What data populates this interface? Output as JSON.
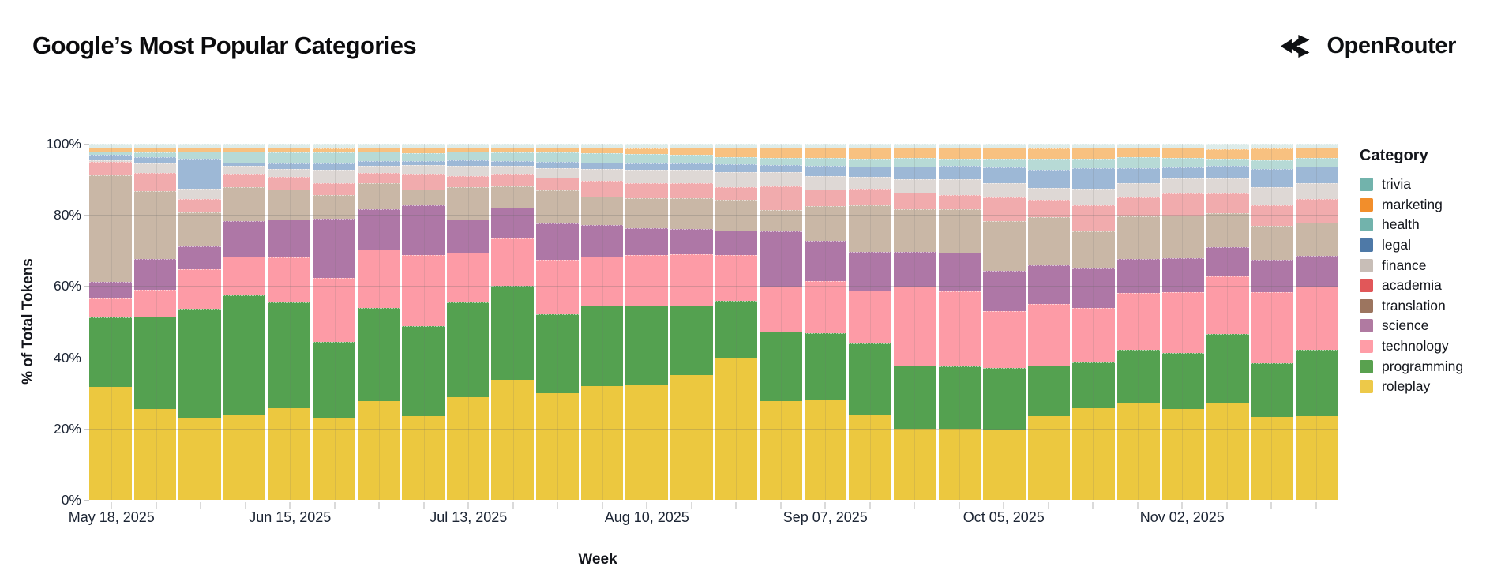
{
  "header": {
    "title": "Google’s Most Popular Categories",
    "brand": "OpenRouter"
  },
  "legend": {
    "title": "Category",
    "items": [
      "trivia",
      "marketing",
      "health",
      "legal",
      "finance",
      "academia",
      "translation",
      "science",
      "technology",
      "programming",
      "roleplay"
    ],
    "patterned_items": [
      "legal",
      "finance"
    ]
  },
  "chart_data": {
    "type": "bar",
    "variant": "100-percent-stacked-weekly-columns",
    "title": "Google’s Most Popular Categories",
    "xlabel": "Week",
    "ylabel": "% of Total Tokens",
    "ylim": [
      0,
      100
    ],
    "y_ticks": [
      "0%",
      "20%",
      "40%",
      "60%",
      "80%",
      "100%"
    ],
    "x_tick_labels_visible": [
      "May 18, 2025",
      "Jun 15, 2025",
      "Jul 13, 2025",
      "Aug 10, 2025",
      "Sep 07, 2025",
      "Oct 05, 2025",
      "Nov 02, 2025"
    ],
    "x_label_week_indices": [
      0,
      4,
      8,
      12,
      16,
      20,
      24
    ],
    "grid": "faint horizontal 20/40/60/80 and per-week vertical lines over bars",
    "legend_position": "right",
    "stack_order_bottom_to_top": [
      "roleplay",
      "programming",
      "technology",
      "science",
      "translation",
      "academia",
      "finance",
      "legal",
      "health",
      "marketing",
      "trivia"
    ],
    "bar_colors": {
      "roleplay": "#ecc83f",
      "programming": "#54a150",
      "technology": "#fd9ba6",
      "science": "#ae77a6",
      "translation": "#c9b7a6",
      "academia": "#f1abad",
      "finance": "#ded8d5",
      "legal": "#9db8d6",
      "health": "#b7dad6",
      "marketing": "#f8c180",
      "trivia": "#ddecea"
    },
    "bar_patterned": [
      "trivia",
      "legal",
      "finance"
    ],
    "legend_colors": {
      "trivia": "#72b3ac",
      "marketing": "#f28e2b",
      "health": "#72b3ac",
      "legal": "#4e79a7",
      "finance": "#c8beb7",
      "academia": "#e15759",
      "translation": "#9c755f",
      "science": "#b07aa1",
      "technology": "#ff9da7",
      "programming": "#59a14f",
      "roleplay": "#edc949"
    },
    "weeks": [
      {
        "week": "May 18, 2025",
        "values": {
          "roleplay": 31.7,
          "programming": 19.6,
          "technology": 5.3,
          "science": 4.7,
          "translation": 29.9,
          "academia": 3.9,
          "finance": 0.3,
          "legal": 1.5,
          "health": 0.9,
          "marketing": 1.3,
          "trivia": 1.0
        }
      },
      {
        "week": "May 25, 2025",
        "values": {
          "roleplay": 25.6,
          "programming": 26.0,
          "technology": 7.5,
          "science": 8.7,
          "translation": 18.9,
          "academia": 5.2,
          "finance": 2.7,
          "legal": 1.8,
          "health": 1.3,
          "marketing": 1.3,
          "trivia": 1.1
        }
      },
      {
        "week": "Jun 01, 2025",
        "values": {
          "roleplay": 22.9,
          "programming": 30.8,
          "technology": 11.1,
          "science": 6.3,
          "translation": 9.6,
          "academia": 3.9,
          "finance": 2.7,
          "legal": 8.6,
          "health": 1.8,
          "marketing": 1.2,
          "trivia": 1.1
        }
      },
      {
        "week": "Jun 08, 2025",
        "values": {
          "roleplay": 24.0,
          "programming": 33.4,
          "technology": 10.9,
          "science": 10.0,
          "translation": 9.5,
          "academia": 3.7,
          "finance": 2.2,
          "legal": 1.0,
          "health": 3.0,
          "marketing": 1.3,
          "trivia": 1.0
        }
      },
      {
        "week": "Jun 15, 2025",
        "values": {
          "roleplay": 25.8,
          "programming": 29.7,
          "technology": 12.6,
          "science": 10.6,
          "translation": 8.4,
          "academia": 3.5,
          "finance": 2.4,
          "legal": 1.5,
          "health": 3.1,
          "marketing": 1.3,
          "trivia": 1.1
        }
      },
      {
        "week": "Jun 22, 2025",
        "values": {
          "roleplay": 22.9,
          "programming": 21.4,
          "technology": 18.1,
          "science": 16.6,
          "translation": 6.5,
          "academia": 3.5,
          "finance": 3.7,
          "legal": 1.7,
          "health": 3.1,
          "marketing": 1.3,
          "trivia": 1.2
        }
      },
      {
        "week": "Jun 29, 2025",
        "values": {
          "roleplay": 27.7,
          "programming": 26.2,
          "technology": 16.3,
          "science": 11.5,
          "translation": 7.2,
          "academia": 2.8,
          "finance": 2.2,
          "legal": 1.3,
          "health": 2.5,
          "marketing": 1.3,
          "trivia": 1.0
        }
      },
      {
        "week": "Jul 06, 2025",
        "values": {
          "roleplay": 23.6,
          "programming": 25.1,
          "technology": 20.0,
          "science": 14.1,
          "translation": 4.4,
          "academia": 4.3,
          "finance": 2.5,
          "legal": 1.2,
          "health": 2.2,
          "marketing": 1.6,
          "trivia": 1.0
        }
      },
      {
        "week": "Jul 13, 2025",
        "values": {
          "roleplay": 28.8,
          "programming": 26.6,
          "technology": 13.9,
          "science": 9.4,
          "translation": 9.2,
          "academia": 3.1,
          "finance": 2.7,
          "legal": 1.6,
          "health": 2.4,
          "marketing": 1.3,
          "trivia": 1.0
        }
      },
      {
        "week": "Jul 20, 2025",
        "values": {
          "roleplay": 33.6,
          "programming": 26.6,
          "technology": 13.3,
          "science": 8.5,
          "translation": 6.1,
          "academia": 3.4,
          "finance": 2.4,
          "legal": 1.3,
          "health": 2.4,
          "marketing": 1.3,
          "trivia": 1.1
        }
      },
      {
        "week": "Jul 27, 2025",
        "values": {
          "roleplay": 30.0,
          "programming": 22.0,
          "technology": 15.3,
          "science": 10.4,
          "translation": 9.3,
          "academia": 3.5,
          "finance": 2.7,
          "legal": 1.7,
          "health": 2.6,
          "marketing": 1.5,
          "trivia": 1.0
        }
      },
      {
        "week": "Aug 03, 2025",
        "values": {
          "roleplay": 31.9,
          "programming": 22.6,
          "technology": 13.7,
          "science": 8.9,
          "translation": 8.1,
          "academia": 4.5,
          "finance": 3.2,
          "legal": 1.8,
          "health": 2.7,
          "marketing": 1.6,
          "trivia": 1.0
        }
      },
      {
        "week": "Aug 10, 2025",
        "values": {
          "roleplay": 32.1,
          "programming": 22.4,
          "technology": 14.2,
          "science": 7.5,
          "translation": 8.6,
          "academia": 4.2,
          "finance": 3.7,
          "legal": 1.8,
          "health": 2.6,
          "marketing": 1.7,
          "trivia": 1.2
        }
      },
      {
        "week": "Aug 17, 2025",
        "values": {
          "roleplay": 35.1,
          "programming": 19.5,
          "technology": 14.3,
          "science": 7.1,
          "translation": 8.7,
          "academia": 4.2,
          "finance": 3.7,
          "legal": 1.9,
          "health": 2.5,
          "marketing": 1.9,
          "trivia": 1.1
        }
      },
      {
        "week": "Aug 24, 2025",
        "values": {
          "roleplay": 39.9,
          "programming": 15.9,
          "technology": 12.9,
          "science": 7.0,
          "translation": 8.5,
          "academia": 3.6,
          "finance": 4.2,
          "legal": 2.2,
          "health": 2.0,
          "marketing": 2.8,
          "trivia": 1.0
        }
      },
      {
        "week": "Aug 31, 2025",
        "values": {
          "roleplay": 27.7,
          "programming": 19.5,
          "technology": 12.7,
          "science": 15.6,
          "translation": 5.9,
          "academia": 6.7,
          "finance": 3.9,
          "legal": 2.0,
          "health": 2.1,
          "marketing": 2.8,
          "trivia": 1.1
        }
      },
      {
        "week": "Sep 07, 2025",
        "values": {
          "roleplay": 27.9,
          "programming": 18.8,
          "technology": 14.8,
          "science": 11.3,
          "translation": 9.8,
          "academia": 4.6,
          "finance": 3.8,
          "legal": 2.8,
          "health": 2.2,
          "marketing": 3.0,
          "trivia": 1.0
        }
      },
      {
        "week": "Sep 14, 2025",
        "values": {
          "roleplay": 23.7,
          "programming": 20.2,
          "technology": 14.8,
          "science": 10.9,
          "translation": 13.2,
          "academia": 4.6,
          "finance": 3.4,
          "legal": 2.7,
          "health": 2.4,
          "marketing": 3.1,
          "trivia": 1.0
        }
      },
      {
        "week": "Sep 21, 2025",
        "values": {
          "roleplay": 19.9,
          "programming": 17.8,
          "technology": 22.2,
          "science": 9.8,
          "translation": 11.9,
          "academia": 4.6,
          "finance": 3.9,
          "legal": 3.5,
          "health": 2.4,
          "marketing": 3.0,
          "trivia": 1.0
        }
      },
      {
        "week": "Sep 28, 2025",
        "values": {
          "roleplay": 20.0,
          "programming": 17.5,
          "technology": 21.0,
          "science": 10.8,
          "translation": 12.2,
          "academia": 4.1,
          "finance": 4.4,
          "legal": 3.7,
          "health": 2.2,
          "marketing": 3.1,
          "trivia": 1.0
        }
      },
      {
        "week": "Oct 05, 2025",
        "values": {
          "roleplay": 19.5,
          "programming": 17.5,
          "technology": 16.1,
          "science": 11.2,
          "translation": 13.9,
          "academia": 6.8,
          "finance": 3.9,
          "legal": 4.4,
          "health": 2.6,
          "marketing": 2.9,
          "trivia": 1.2
        }
      },
      {
        "week": "Oct 12, 2025",
        "values": {
          "roleplay": 23.6,
          "programming": 14.1,
          "technology": 17.3,
          "science": 10.9,
          "translation": 13.6,
          "academia": 4.7,
          "finance": 3.3,
          "legal": 5.2,
          "health": 3.0,
          "marketing": 3.1,
          "trivia": 1.2
        }
      },
      {
        "week": "Oct 19, 2025",
        "values": {
          "roleplay": 25.8,
          "programming": 12.7,
          "technology": 15.5,
          "science": 10.9,
          "translation": 10.4,
          "academia": 7.4,
          "finance": 4.6,
          "legal": 5.8,
          "health": 2.8,
          "marketing": 3.1,
          "trivia": 1.0
        }
      },
      {
        "week": "Oct 26, 2025",
        "values": {
          "roleplay": 27.1,
          "programming": 15.1,
          "technology": 16.0,
          "science": 9.4,
          "translation": 12.0,
          "academia": 5.3,
          "finance": 4.1,
          "legal": 4.2,
          "health": 3.0,
          "marketing": 2.8,
          "trivia": 1.0
        }
      },
      {
        "week": "Nov 02, 2025",
        "values": {
          "roleplay": 25.4,
          "programming": 15.9,
          "technology": 17.0,
          "science": 9.5,
          "translation": 12.1,
          "academia": 6.1,
          "finance": 4.2,
          "legal": 3.2,
          "health": 2.6,
          "marketing": 3.0,
          "trivia": 1.0
        }
      },
      {
        "week": "Nov 09, 2025",
        "values": {
          "roleplay": 27.1,
          "programming": 19.5,
          "technology": 16.1,
          "science": 8.3,
          "translation": 9.5,
          "academia": 5.5,
          "finance": 4.2,
          "legal": 3.7,
          "health": 1.9,
          "marketing": 2.6,
          "trivia": 1.6
        }
      },
      {
        "week": "Nov 16, 2025",
        "values": {
          "roleplay": 23.2,
          "programming": 15.2,
          "technology": 20.0,
          "science": 9.0,
          "translation": 9.6,
          "academia": 5.9,
          "finance": 4.9,
          "legal": 5.2,
          "health": 2.5,
          "marketing": 3.2,
          "trivia": 1.4
        }
      },
      {
        "week": "Nov 23, 2025",
        "values": {
          "roleplay": 23.6,
          "programming": 18.6,
          "technology": 17.8,
          "science": 8.7,
          "translation": 9.2,
          "academia": 6.7,
          "finance": 4.4,
          "legal": 4.7,
          "health": 2.4,
          "marketing": 2.8,
          "trivia": 1.2
        }
      }
    ]
  }
}
